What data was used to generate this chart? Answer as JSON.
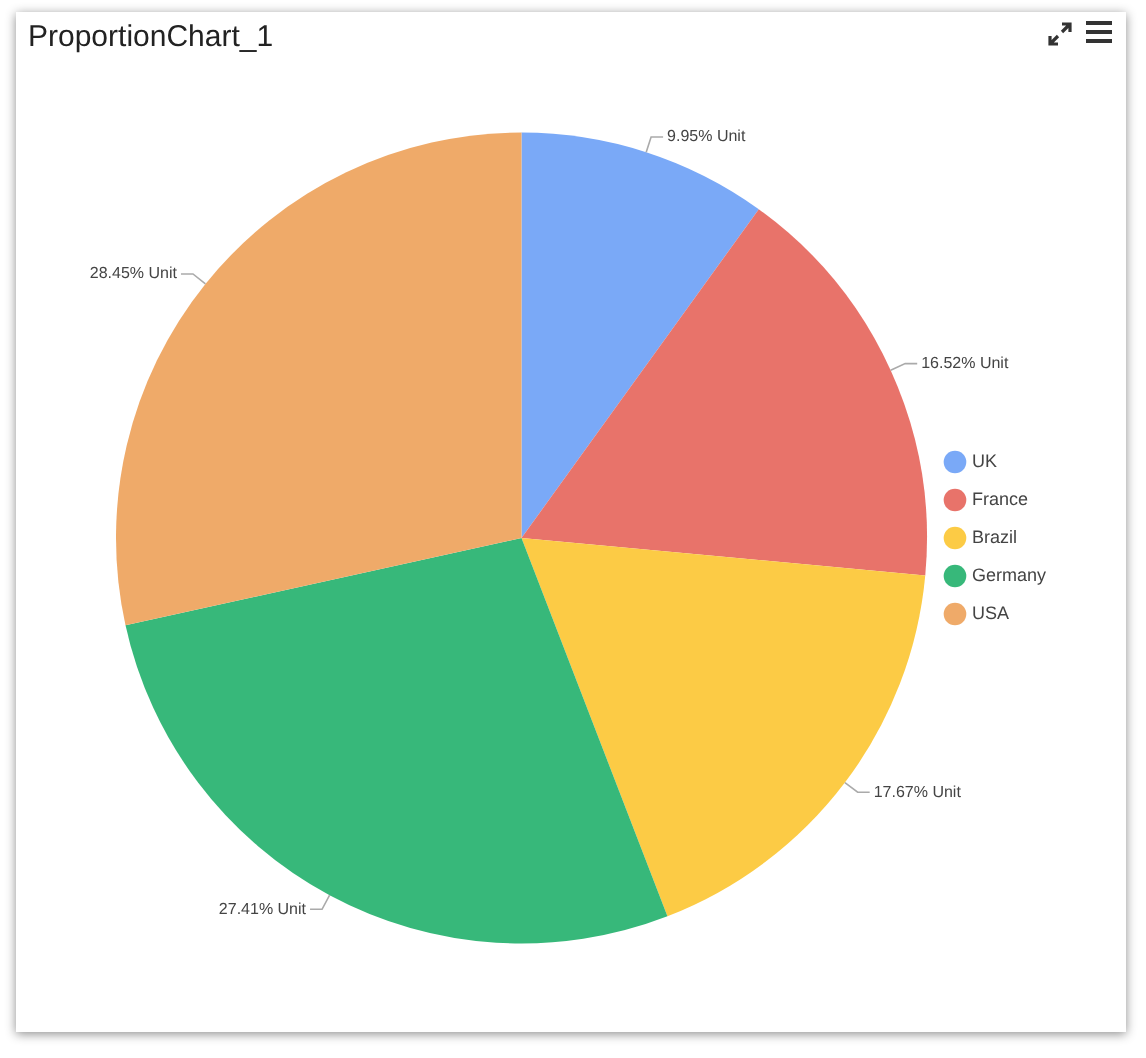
{
  "chart_data": {
    "type": "pie",
    "title": "ProportionChart_1",
    "categories": [
      "UK",
      "France",
      "Brazil",
      "Germany",
      "USA"
    ],
    "values": [
      9.95,
      16.52,
      17.67,
      27.41,
      28.45
    ],
    "colors": [
      "#7aa9f7",
      "#e8736a",
      "#fccb45",
      "#37b87a",
      "#efaa69"
    ],
    "value_labels": [
      "9.95% Unit",
      "16.52% Unit",
      "17.67% Unit",
      "27.41% Unit",
      "28.45% Unit"
    ],
    "legend": "right"
  }
}
